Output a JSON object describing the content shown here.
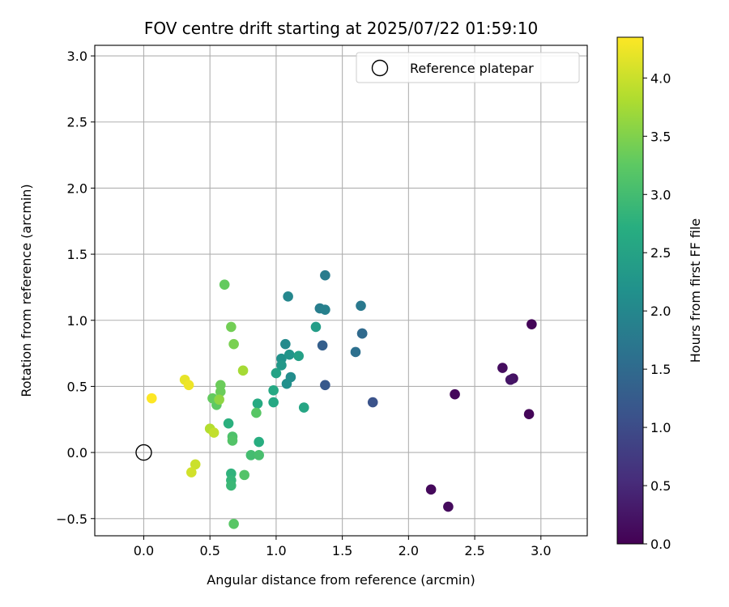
{
  "chart_data": {
    "type": "scatter",
    "title": "FOV centre drift starting at 2025/07/22 01:59:10",
    "xlabel": "Angular distance from reference (arcmin)",
    "ylabel": "Rotation from reference (arcmin)",
    "xlim": [
      -0.37,
      3.35
    ],
    "ylim": [
      -0.63,
      3.08
    ],
    "xticks": [
      "0.0",
      "0.5",
      "1.0",
      "1.5",
      "2.0",
      "2.5",
      "3.0"
    ],
    "xtick_values": [
      0,
      0.5,
      1.0,
      1.5,
      2.0,
      2.5,
      3.0
    ],
    "yticks": [
      "−0.5",
      "0.0",
      "0.5",
      "1.0",
      "1.5",
      "2.0",
      "2.5",
      "3.0"
    ],
    "ytick_values": [
      -0.5,
      0,
      0.5,
      1.0,
      1.5,
      2.0,
      2.5,
      3.0
    ],
    "grid": true,
    "legend": {
      "placement": "top-right",
      "entries": [
        "Reference platepar"
      ]
    },
    "reference_point": {
      "x": 0.0,
      "y": 0.0
    },
    "colorbar": {
      "label": "Hours from first FF file",
      "colormap": "viridis",
      "range": [
        0,
        4.35
      ],
      "ticks": [
        "0.0",
        "0.5",
        "1.0",
        "1.5",
        "2.0",
        "2.5",
        "3.0",
        "3.5",
        "4.0"
      ],
      "tick_values": [
        0,
        0.5,
        1.0,
        1.5,
        2.0,
        2.5,
        3.0,
        3.5,
        4.0
      ]
    },
    "points": [
      {
        "x": 2.93,
        "y": 0.97,
        "c": 0.05
      },
      {
        "x": 2.91,
        "y": 0.29,
        "c": 0.05
      },
      {
        "x": 2.35,
        "y": 0.44,
        "c": 0.08
      },
      {
        "x": 2.17,
        "y": -0.28,
        "c": 0.1
      },
      {
        "x": 2.3,
        "y": -0.41,
        "c": 0.12
      },
      {
        "x": 2.71,
        "y": 0.64,
        "c": 0.15
      },
      {
        "x": 2.79,
        "y": 0.56,
        "c": 0.2
      },
      {
        "x": 2.77,
        "y": 0.55,
        "c": 0.25
      },
      {
        "x": 1.73,
        "y": 0.38,
        "c": 1.1
      },
      {
        "x": 1.37,
        "y": 0.51,
        "c": 1.2
      },
      {
        "x": 1.35,
        "y": 0.81,
        "c": 1.3
      },
      {
        "x": 1.65,
        "y": 0.9,
        "c": 1.45
      },
      {
        "x": 1.65,
        "y": 0.9,
        "c": 1.5
      },
      {
        "x": 1.6,
        "y": 0.76,
        "c": 1.6
      },
      {
        "x": 1.64,
        "y": 1.11,
        "c": 1.75
      },
      {
        "x": 1.37,
        "y": 1.34,
        "c": 1.8
      },
      {
        "x": 1.33,
        "y": 1.09,
        "c": 1.85
      },
      {
        "x": 1.37,
        "y": 1.08,
        "c": 1.9
      },
      {
        "x": 1.09,
        "y": 1.18,
        "c": 2.0
      },
      {
        "x": 1.07,
        "y": 0.82,
        "c": 2.05
      },
      {
        "x": 1.11,
        "y": 0.57,
        "c": 2.1
      },
      {
        "x": 1.08,
        "y": 0.52,
        "c": 2.15
      },
      {
        "x": 1.04,
        "y": 0.71,
        "c": 2.2
      },
      {
        "x": 1.1,
        "y": 0.74,
        "c": 2.25
      },
      {
        "x": 1.04,
        "y": 0.66,
        "c": 2.3
      },
      {
        "x": 1.3,
        "y": 0.95,
        "c": 2.4
      },
      {
        "x": 1.17,
        "y": 0.73,
        "c": 2.45
      },
      {
        "x": 1.21,
        "y": 0.34,
        "c": 2.55
      },
      {
        "x": 1.0,
        "y": 0.6,
        "c": 2.5
      },
      {
        "x": 0.98,
        "y": 0.47,
        "c": 2.6
      },
      {
        "x": 0.98,
        "y": 0.38,
        "c": 2.6
      },
      {
        "x": 0.86,
        "y": 0.37,
        "c": 2.65
      },
      {
        "x": 0.87,
        "y": 0.08,
        "c": 2.7
      },
      {
        "x": 0.64,
        "y": 0.22,
        "c": 2.75
      },
      {
        "x": 0.66,
        "y": -0.16,
        "c": 2.8
      },
      {
        "x": 0.66,
        "y": -0.21,
        "c": 2.85
      },
      {
        "x": 0.66,
        "y": -0.25,
        "c": 2.9
      },
      {
        "x": 0.81,
        "y": -0.02,
        "c": 3.0
      },
      {
        "x": 0.87,
        "y": -0.02,
        "c": 3.05
      },
      {
        "x": 0.67,
        "y": 0.12,
        "c": 3.1
      },
      {
        "x": 0.67,
        "y": 0.09,
        "c": 3.15
      },
      {
        "x": 0.76,
        "y": -0.17,
        "c": 3.15
      },
      {
        "x": 0.85,
        "y": 0.3,
        "c": 3.2
      },
      {
        "x": 0.68,
        "y": -0.54,
        "c": 3.2
      },
      {
        "x": 0.55,
        "y": 0.36,
        "c": 3.25
      },
      {
        "x": 0.52,
        "y": 0.41,
        "c": 3.3
      },
      {
        "x": 0.58,
        "y": 0.46,
        "c": 3.35
      },
      {
        "x": 0.58,
        "y": 0.51,
        "c": 3.35
      },
      {
        "x": 0.61,
        "y": 1.27,
        "c": 3.3
      },
      {
        "x": 0.66,
        "y": 0.95,
        "c": 3.4
      },
      {
        "x": 0.68,
        "y": 0.82,
        "c": 3.45
      },
      {
        "x": 0.57,
        "y": 0.4,
        "c": 3.6
      },
      {
        "x": 0.75,
        "y": 0.62,
        "c": 3.75
      },
      {
        "x": 0.5,
        "y": 0.18,
        "c": 3.85
      },
      {
        "x": 0.53,
        "y": 0.15,
        "c": 3.95
      },
      {
        "x": 0.39,
        "y": -0.09,
        "c": 4.0
      },
      {
        "x": 0.36,
        "y": -0.15,
        "c": 4.05
      },
      {
        "x": 0.31,
        "y": 0.55,
        "c": 4.2
      },
      {
        "x": 0.34,
        "y": 0.51,
        "c": 4.25
      },
      {
        "x": 0.06,
        "y": 0.41,
        "c": 4.35
      }
    ]
  }
}
